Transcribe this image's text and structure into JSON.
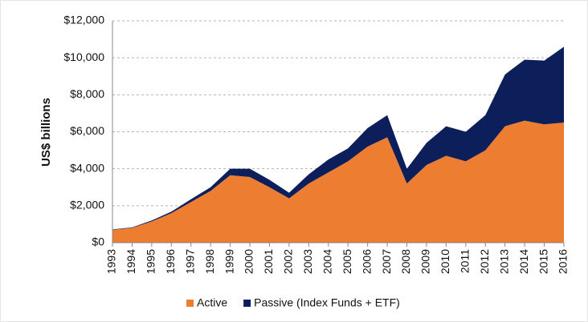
{
  "chart_data": {
    "type": "stacked_area",
    "y_axis_label": "US$ billions",
    "x": [
      1993,
      1994,
      1995,
      1996,
      1997,
      1998,
      1999,
      2000,
      2001,
      2002,
      2003,
      2004,
      2005,
      2006,
      2007,
      2008,
      2009,
      2010,
      2011,
      2012,
      2013,
      2014,
      2015,
      2016
    ],
    "series": [
      {
        "name": "Active",
        "color": "#ed7d31",
        "values": [
          700,
          800,
          1150,
          1600,
          2200,
          2800,
          3650,
          3550,
          3000,
          2400,
          3200,
          3800,
          4400,
          5200,
          5700,
          3200,
          4200,
          4700,
          4400,
          5000,
          6300,
          6600,
          6400,
          6500
        ]
      },
      {
        "name": "Passive (Index Funds + ETF)",
        "color": "#0c1f5b",
        "values": [
          20,
          30,
          50,
          80,
          150,
          200,
          350,
          450,
          400,
          300,
          500,
          700,
          700,
          1000,
          1200,
          800,
          1200,
          1600,
          1600,
          1900,
          2800,
          3300,
          3450,
          4100
        ]
      }
    ],
    "xlim": [
      1993,
      2016
    ],
    "ylim": [
      0,
      12000
    ],
    "yticks": [
      {
        "value": 0,
        "label": "$0"
      },
      {
        "value": 2000,
        "label": "$2,000"
      },
      {
        "value": 4000,
        "label": "$4,000"
      },
      {
        "value": 6000,
        "label": "$6,000"
      },
      {
        "value": 8000,
        "label": "$8,000"
      },
      {
        "value": 10000,
        "label": "$10,000"
      },
      {
        "value": 12000,
        "label": "$12,000"
      }
    ],
    "grid": true,
    "legend": "bottom"
  }
}
